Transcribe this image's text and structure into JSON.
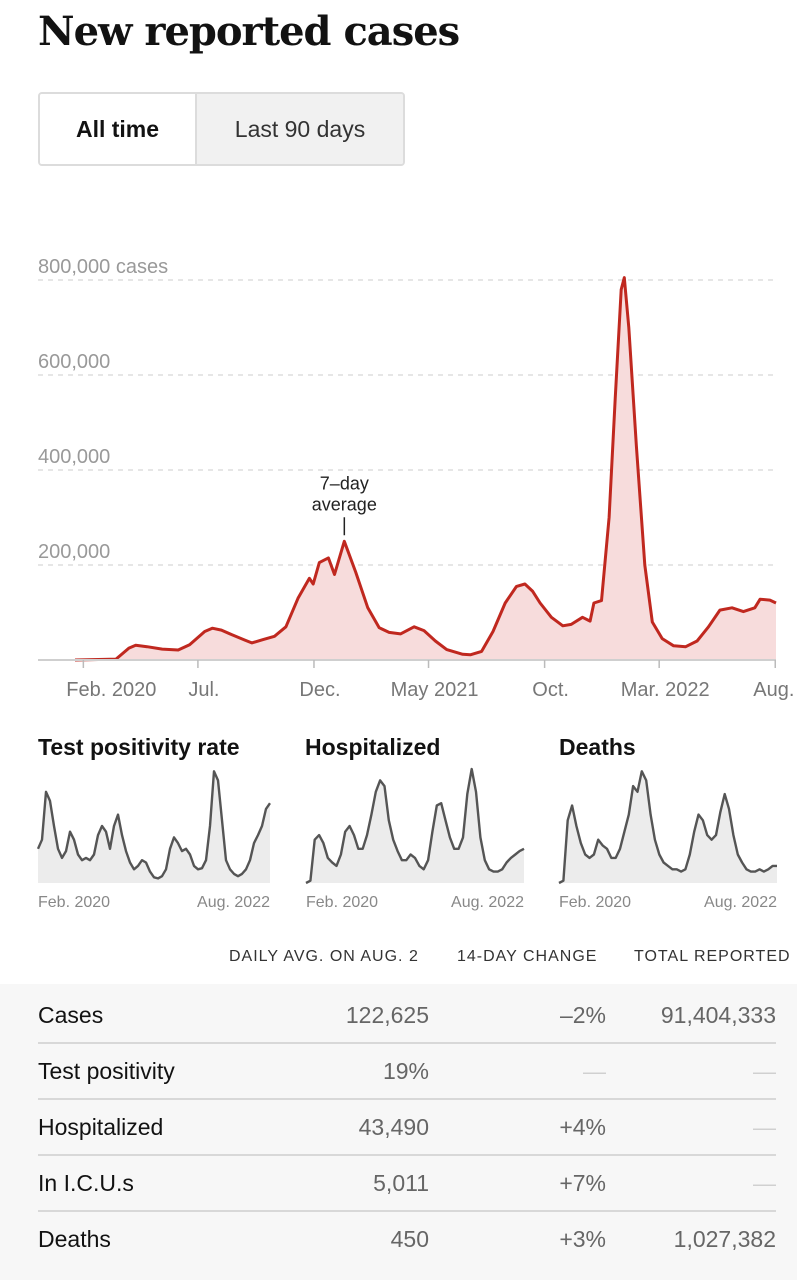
{
  "header": {
    "title": "New reported cases"
  },
  "toggle": {
    "all_time": "All time",
    "last_90": "Last 90 days"
  },
  "chart_data": {
    "type": "area",
    "title": "New reported cases",
    "ylabel_unit": "cases",
    "yticks": [
      "800,000 cases",
      "600,000",
      "400,000",
      "200,000"
    ],
    "ytick_values": [
      800000,
      600000,
      400000,
      200000
    ],
    "ylim": [
      0,
      800000
    ],
    "xticks": [
      "Feb. 2020",
      "Jul.",
      "Dec.",
      "May 2021",
      "Oct.",
      "Mar. 2022",
      "Aug."
    ],
    "xtick_dates": [
      "2020-02-01",
      "2020-07-01",
      "2020-12-01",
      "2021-05-01",
      "2021-10-01",
      "2022-03-01",
      "2022-08-01"
    ],
    "xlim": [
      "2020-01-21",
      "2022-08-02"
    ],
    "series": [
      {
        "name": "7-day average",
        "points": [
          [
            "2020-01-21",
            0
          ],
          [
            "2020-03-15",
            2000
          ],
          [
            "2020-04-01",
            25000
          ],
          [
            "2020-04-10",
            31000
          ],
          [
            "2020-04-25",
            28000
          ],
          [
            "2020-05-15",
            23000
          ],
          [
            "2020-06-05",
            21000
          ],
          [
            "2020-06-20",
            32000
          ],
          [
            "2020-07-10",
            60000
          ],
          [
            "2020-07-20",
            67000
          ],
          [
            "2020-08-01",
            63000
          ],
          [
            "2020-08-15",
            53000
          ],
          [
            "2020-09-01",
            42000
          ],
          [
            "2020-09-10",
            36000
          ],
          [
            "2020-09-25",
            43000
          ],
          [
            "2020-10-10",
            50000
          ],
          [
            "2020-10-25",
            70000
          ],
          [
            "2020-11-10",
            130000
          ],
          [
            "2020-11-25",
            172000
          ],
          [
            "2020-11-30",
            160000
          ],
          [
            "2020-12-08",
            205000
          ],
          [
            "2020-12-20",
            215000
          ],
          [
            "2020-12-28",
            180000
          ],
          [
            "2021-01-10",
            250000
          ],
          [
            "2021-01-25",
            185000
          ],
          [
            "2021-02-10",
            110000
          ],
          [
            "2021-02-25",
            68000
          ],
          [
            "2021-03-10",
            58000
          ],
          [
            "2021-03-25",
            55000
          ],
          [
            "2021-04-12",
            70000
          ],
          [
            "2021-04-25",
            62000
          ],
          [
            "2021-05-10",
            40000
          ],
          [
            "2021-05-25",
            22000
          ],
          [
            "2021-06-15",
            12000
          ],
          [
            "2021-06-25",
            11000
          ],
          [
            "2021-07-10",
            18000
          ],
          [
            "2021-07-25",
            60000
          ],
          [
            "2021-08-10",
            120000
          ],
          [
            "2021-08-25",
            155000
          ],
          [
            "2021-09-05",
            160000
          ],
          [
            "2021-09-15",
            145000
          ],
          [
            "2021-09-25",
            120000
          ],
          [
            "2021-10-10",
            90000
          ],
          [
            "2021-10-25",
            72000
          ],
          [
            "2021-11-05",
            75000
          ],
          [
            "2021-11-20",
            90000
          ],
          [
            "2021-11-30",
            82000
          ],
          [
            "2021-12-05",
            120000
          ],
          [
            "2021-12-15",
            125000
          ],
          [
            "2021-12-25",
            300000
          ],
          [
            "2022-01-02",
            550000
          ],
          [
            "2022-01-10",
            780000
          ],
          [
            "2022-01-14",
            805000
          ],
          [
            "2022-01-20",
            700000
          ],
          [
            "2022-01-30",
            450000
          ],
          [
            "2022-02-10",
            200000
          ],
          [
            "2022-02-20",
            80000
          ],
          [
            "2022-03-05",
            45000
          ],
          [
            "2022-03-20",
            30000
          ],
          [
            "2022-04-05",
            28000
          ],
          [
            "2022-04-20",
            40000
          ],
          [
            "2022-05-05",
            70000
          ],
          [
            "2022-05-20",
            105000
          ],
          [
            "2022-06-05",
            110000
          ],
          [
            "2022-06-20",
            102000
          ],
          [
            "2022-07-05",
            110000
          ],
          [
            "2022-07-12",
            128000
          ],
          [
            "2022-07-25",
            126000
          ],
          [
            "2022-08-02",
            120000
          ]
        ]
      }
    ],
    "annotation": {
      "text_line1": "7–day",
      "text_line2": "average",
      "date": "2021-01-10",
      "value": 250000
    },
    "grid": true
  },
  "small_charts": [
    {
      "title": "Test positivity rate",
      "x_start": "Feb. 2020",
      "x_end": "Aug. 2022",
      "values": [
        0.3,
        0.38,
        0.8,
        0.72,
        0.5,
        0.3,
        0.22,
        0.28,
        0.45,
        0.38,
        0.25,
        0.2,
        0.22,
        0.2,
        0.25,
        0.42,
        0.5,
        0.45,
        0.3,
        0.5,
        0.6,
        0.42,
        0.28,
        0.18,
        0.12,
        0.15,
        0.2,
        0.18,
        0.1,
        0.05,
        0.04,
        0.06,
        0.12,
        0.3,
        0.4,
        0.35,
        0.28,
        0.3,
        0.25,
        0.15,
        0.12,
        0.13,
        0.2,
        0.5,
        0.98,
        0.9,
        0.55,
        0.2,
        0.12,
        0.08,
        0.06,
        0.08,
        0.12,
        0.2,
        0.35,
        0.42,
        0.5,
        0.65,
        0.7
      ]
    },
    {
      "title": "Hospitalized",
      "x_start": "Feb. 2020",
      "x_end": "Aug. 2022",
      "values": [
        0,
        0.02,
        0.38,
        0.42,
        0.35,
        0.22,
        0.18,
        0.15,
        0.25,
        0.45,
        0.5,
        0.42,
        0.3,
        0.3,
        0.42,
        0.6,
        0.8,
        0.9,
        0.85,
        0.55,
        0.38,
        0.28,
        0.2,
        0.2,
        0.25,
        0.22,
        0.15,
        0.12,
        0.2,
        0.45,
        0.68,
        0.7,
        0.55,
        0.4,
        0.3,
        0.3,
        0.4,
        0.78,
        1.0,
        0.8,
        0.4,
        0.2,
        0.12,
        0.1,
        0.1,
        0.12,
        0.18,
        0.22,
        0.25,
        0.28,
        0.3
      ]
    },
    {
      "title": "Deaths",
      "x_start": "Feb. 2020",
      "x_end": "Aug. 2022",
      "values": [
        0,
        0.02,
        0.55,
        0.68,
        0.5,
        0.35,
        0.25,
        0.22,
        0.25,
        0.38,
        0.33,
        0.3,
        0.22,
        0.22,
        0.3,
        0.45,
        0.6,
        0.85,
        0.8,
        0.98,
        0.9,
        0.6,
        0.38,
        0.25,
        0.18,
        0.15,
        0.12,
        0.12,
        0.1,
        0.12,
        0.25,
        0.45,
        0.6,
        0.55,
        0.42,
        0.38,
        0.42,
        0.62,
        0.78,
        0.65,
        0.42,
        0.25,
        0.18,
        0.12,
        0.1,
        0.1,
        0.12,
        0.1,
        0.12,
        0.15,
        0.15
      ]
    }
  ],
  "table": {
    "headers": {
      "daily": "DAILY AVG. ON AUG. 2",
      "change": "14-DAY CHANGE",
      "total": "TOTAL REPORTED"
    },
    "rows": [
      {
        "label": "Cases",
        "daily": "122,625",
        "change": "–2%",
        "total": "91,404,333"
      },
      {
        "label": "Test positivity",
        "daily": "19%",
        "change": "—",
        "total": "—"
      },
      {
        "label": "Hospitalized",
        "daily": "43,490",
        "change": "+4%",
        "total": "—"
      },
      {
        "label": "In I.C.U.s",
        "daily": "5,011",
        "change": "+7%",
        "total": "—"
      },
      {
        "label": "Deaths",
        "daily": "450",
        "change": "+3%",
        "total": "1,027,382"
      }
    ]
  },
  "colors": {
    "line": "#c0281f",
    "fill": "#f7dcdc",
    "small_line": "#555555",
    "small_fill": "#ececec"
  }
}
